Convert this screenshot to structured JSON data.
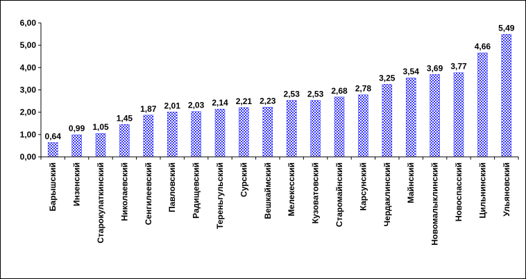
{
  "chart_data": {
    "type": "bar",
    "title": "",
    "xlabel": "",
    "ylabel": "",
    "ylim": [
      0,
      6
    ],
    "y_ticks": [
      "0,00",
      "1,00",
      "2,00",
      "3,00",
      "4,00",
      "5,00",
      "6,00"
    ],
    "grid": false,
    "legend": "none",
    "bar_color": "#3333ff",
    "bar_pattern": "checkered",
    "categories": [
      "Барышский",
      "Инзенский",
      "Старокулаткинский",
      "Николаевский",
      "Сенгилеевский",
      "Павловский",
      "Радищевский",
      "Тереньгульский",
      "Сурский",
      "Вешкаймский",
      "Мелекесский",
      "Кузоватовский",
      "Старомайнский",
      "Карсунский",
      "Чердаклинский",
      "Майнский",
      "Новомалыклинский",
      "Новоспасский",
      "Цильнинский",
      "Ульяновский"
    ],
    "values": [
      0.64,
      0.99,
      1.05,
      1.45,
      1.87,
      2.01,
      2.03,
      2.14,
      2.21,
      2.23,
      2.53,
      2.53,
      2.68,
      2.78,
      3.25,
      3.54,
      3.69,
      3.77,
      4.66,
      5.49
    ],
    "value_labels": [
      "0,64",
      "0,99",
      "1,05",
      "1,45",
      "1,87",
      "2,01",
      "2,03",
      "2,14",
      "2,21",
      "2,23",
      "2,53",
      "2,53",
      "2,68",
      "2,78",
      "3,25",
      "3,54",
      "3,69",
      "3,77",
      "4,66",
      "5,49"
    ]
  }
}
